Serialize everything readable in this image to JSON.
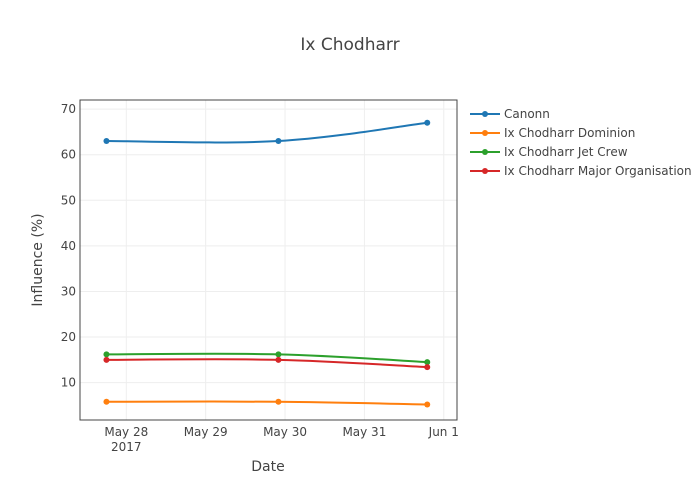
{
  "chart_data": {
    "type": "line",
    "title": "Ix Chodharr",
    "xlabel": "Date",
    "ylabel": "Influence (%)",
    "x": [
      "2017-05-27 18:00",
      "2017-05-29 22:00",
      "2017-05-31 19:00"
    ],
    "xticks": [
      {
        "date": "2017-05-28",
        "label": "May 28",
        "sublabel": "2017"
      },
      {
        "date": "2017-05-29",
        "label": "May 29",
        "sublabel": ""
      },
      {
        "date": "2017-05-30",
        "label": "May 30",
        "sublabel": ""
      },
      {
        "date": "2017-05-31",
        "label": "May 31",
        "sublabel": ""
      },
      {
        "date": "2017-06-01",
        "label": "Jun 1",
        "sublabel": ""
      }
    ],
    "xlim": [
      "2017-05-27 10:00",
      "2017-06-01 04:00"
    ],
    "ylim": [
      1.8,
      72
    ],
    "yticks": [
      10,
      20,
      30,
      40,
      50,
      60,
      70
    ],
    "grid": true,
    "legend_position": "right",
    "series": [
      {
        "name": "Canonn",
        "color": "#1f77b4",
        "values": [
          63.0,
          63.0,
          67.0
        ]
      },
      {
        "name": "Ix Chodharr Dominion",
        "color": "#ff7f0e",
        "values": [
          5.8,
          5.8,
          5.2
        ]
      },
      {
        "name": "Ix Chodharr Jet Crew",
        "color": "#2ca02c",
        "values": [
          16.2,
          16.2,
          14.5
        ]
      },
      {
        "name": "Ix Chodharr Major Organisation",
        "color": "#d62728",
        "values": [
          15.0,
          15.0,
          13.4
        ]
      }
    ]
  }
}
